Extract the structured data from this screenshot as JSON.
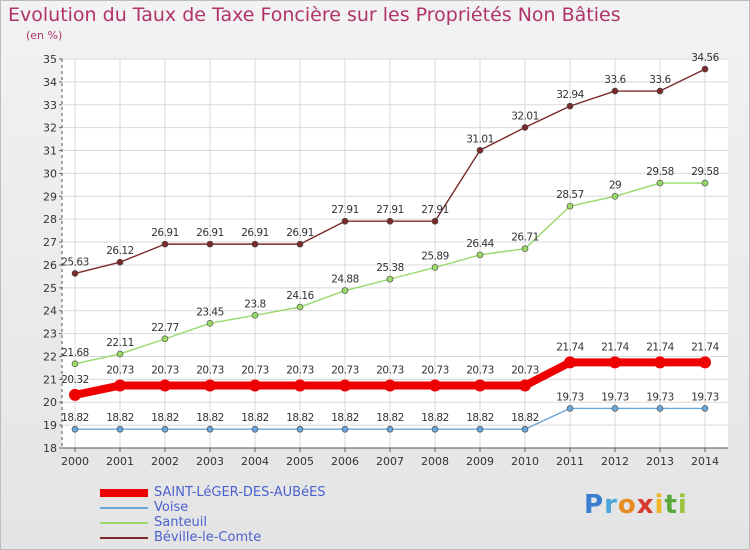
{
  "chart_data": {
    "type": "line",
    "title": "Evolution du Taux de Taxe Foncière sur les Propriétés Non Bâties",
    "ylabel": "(en %)",
    "xlabel": "",
    "x": [
      "2000",
      "2001",
      "2002",
      "2003",
      "2004",
      "2005",
      "2006",
      "2007",
      "2008",
      "2009",
      "2010",
      "2011",
      "2012",
      "2013",
      "2014"
    ],
    "ylim": [
      18,
      35
    ],
    "yticks": [
      18,
      19,
      20,
      21,
      22,
      23,
      24,
      25,
      26,
      27,
      28,
      29,
      30,
      31,
      32,
      33,
      34,
      35
    ],
    "series": [
      {
        "name": "Béville-le-Comte",
        "color": "#7a2a2a",
        "values": [
          25.63,
          26.12,
          26.91,
          26.91,
          26.91,
          26.91,
          27.91,
          27.91,
          27.91,
          31.01,
          32.01,
          32.94,
          33.6,
          33.6,
          34.56
        ],
        "labels": [
          "25.63",
          "26.12",
          "26.91",
          "26.91",
          "26.91",
          "26.91",
          "27.91",
          "27.91",
          "27.91",
          "31.01",
          "32.01",
          "32.94",
          "33.6",
          "33.6",
          "34.56"
        ]
      },
      {
        "name": "Santeuil",
        "color": "#99d96b",
        "values": [
          21.68,
          22.11,
          22.77,
          23.45,
          23.8,
          24.16,
          24.88,
          25.38,
          25.89,
          26.44,
          26.71,
          28.57,
          29,
          29.58,
          29.58
        ],
        "labels": [
          "21.68",
          "22.11",
          "22.77",
          "23.45",
          "23.8",
          "24.16",
          "24.88",
          "25.38",
          "25.89",
          "26.44",
          "26.71",
          "28.57",
          "29",
          "29.58",
          "29.58"
        ]
      },
      {
        "name": "Voise",
        "color": "#6aa6d9",
        "values": [
          18.82,
          18.82,
          18.82,
          18.82,
          18.82,
          18.82,
          18.82,
          18.82,
          18.82,
          18.82,
          18.82,
          19.73,
          19.73,
          19.73,
          19.73
        ],
        "labels": [
          "18.82",
          "18.82",
          "18.82",
          "18.82",
          "18.82",
          "18.82",
          "18.82",
          "18.82",
          "18.82",
          "18.82",
          "18.82",
          "19.73",
          "19.73",
          "19.73",
          "19.73"
        ]
      },
      {
        "name": "SAINT-LéGER-DES-AUBéES",
        "color": "#ee0000",
        "values": [
          20.32,
          20.73,
          20.73,
          20.73,
          20.73,
          20.73,
          20.73,
          20.73,
          20.73,
          20.73,
          20.73,
          21.74,
          21.74,
          21.74,
          21.74
        ],
        "labels": [
          "20.32",
          "20.73",
          "20.73",
          "20.73",
          "20.73",
          "20.73",
          "20.73",
          "20.73",
          "20.73",
          "20.73",
          "20.73",
          "21.74",
          "21.74",
          "21.74",
          "21.74"
        ]
      }
    ],
    "legend": [
      "SAINT-LéGER-DES-AUBéES",
      "Voise",
      "Santeuil",
      "Béville-le-Comte"
    ]
  },
  "logo_text": [
    "P",
    "r",
    "o",
    "x",
    "i",
    "t",
    "i"
  ]
}
